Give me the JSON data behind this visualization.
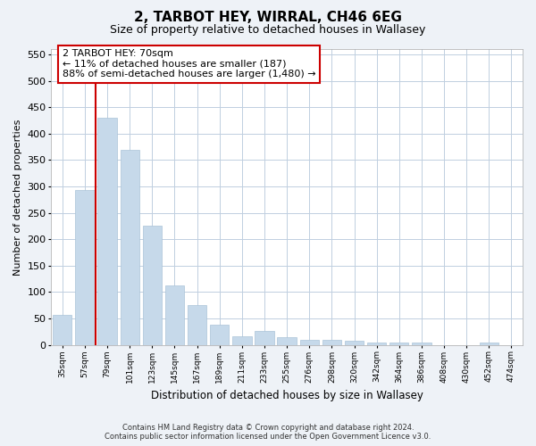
{
  "title_line1": "2, TARBOT HEY, WIRRAL, CH46 6EG",
  "title_line2": "Size of property relative to detached houses in Wallasey",
  "xlabel": "Distribution of detached houses by size in Wallasey",
  "ylabel": "Number of detached properties",
  "categories": [
    "35sqm",
    "57sqm",
    "79sqm",
    "101sqm",
    "123sqm",
    "145sqm",
    "167sqm",
    "189sqm",
    "211sqm",
    "233sqm",
    "255sqm",
    "276sqm",
    "298sqm",
    "320sqm",
    "342sqm",
    "364sqm",
    "386sqm",
    "408sqm",
    "430sqm",
    "452sqm",
    "474sqm"
  ],
  "values": [
    57,
    293,
    430,
    369,
    226,
    113,
    76,
    38,
    17,
    27,
    15,
    10,
    10,
    8,
    5,
    4,
    5,
    0,
    0,
    5,
    0
  ],
  "bar_color": "#c6d9ea",
  "bar_edge_color": "#aac4d8",
  "ylim": [
    0,
    560
  ],
  "yticks": [
    0,
    50,
    100,
    150,
    200,
    250,
    300,
    350,
    400,
    450,
    500,
    550
  ],
  "vline_color": "#cc0000",
  "vline_x_index": 2,
  "annotation_text": "2 TARBOT HEY: 70sqm\n← 11% of detached houses are smaller (187)\n88% of semi-detached houses are larger (1,480) →",
  "annotation_box_facecolor": "#ffffff",
  "annotation_box_edgecolor": "#cc0000",
  "footer_line1": "Contains HM Land Registry data © Crown copyright and database right 2024.",
  "footer_line2": "Contains public sector information licensed under the Open Government Licence v3.0.",
  "fig_background_color": "#eef2f7",
  "plot_bg_color": "#ffffff",
  "grid_color": "#c0cfe0"
}
